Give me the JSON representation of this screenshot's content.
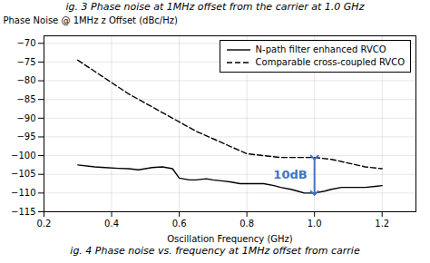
{
  "chart_data": {
    "type": "line",
    "title": "ig. 3 Phase noise at 1MHz offset from the carrier at 1.0 GHz",
    "caption": "ig. 4 Phase noise vs. frequency at 1MHz offset from carrie",
    "xlabel": "Oscillation Frequency (GHz)",
    "ylabel": "Phase Noise @ 1MHz z Offset (dBc/Hz)",
    "xlim": [
      0.2,
      1.3
    ],
    "ylim": [
      -115,
      -68
    ],
    "xticks": [
      0.2,
      0.4,
      0.6,
      0.8,
      {
        "value": 1.0,
        "label": "1.0"
      },
      1.2
    ],
    "yticks": [
      -115,
      -110,
      -105,
      -100,
      -95,
      -90,
      -85,
      -80,
      -75,
      -70
    ],
    "grid": true,
    "legend": "upper right",
    "series": [
      {
        "name": "N-path filter enhanced RVCO",
        "color": "#000000",
        "line_style": "solid",
        "x": [
          0.3,
          0.35,
          0.38,
          0.42,
          0.45,
          0.48,
          0.5,
          0.52,
          0.55,
          0.58,
          0.6,
          0.63,
          0.65,
          0.68,
          0.7,
          0.73,
          0.75,
          0.78,
          0.8,
          0.83,
          0.85,
          0.88,
          0.9,
          0.93,
          0.95,
          0.97,
          1.0,
          1.03,
          1.05,
          1.08,
          1.1,
          1.13,
          1.15,
          1.18,
          1.2
        ],
        "values": [
          -102.5,
          -103.0,
          -103.2,
          -103.4,
          -103.5,
          -103.8,
          -103.5,
          -103.2,
          -103.0,
          -103.5,
          -106.0,
          -106.5,
          -106.5,
          -106.2,
          -106.5,
          -106.8,
          -107.0,
          -107.5,
          -107.5,
          -107.5,
          -107.5,
          -108.0,
          -108.5,
          -109.0,
          -109.5,
          -110.0,
          -110.0,
          -109.5,
          -109.0,
          -108.5,
          -108.5,
          -108.5,
          -108.5,
          -108.2,
          -108.0
        ]
      },
      {
        "name": "Comparable cross-coupled RVCO",
        "color": "#000000",
        "line_style": "dashed",
        "x": [
          0.3,
          0.35,
          0.4,
          0.45,
          0.5,
          0.55,
          0.6,
          0.65,
          0.7,
          0.75,
          0.8,
          0.85,
          0.9,
          0.95,
          1.0,
          1.05,
          1.1,
          1.15,
          1.2
        ],
        "values": [
          -74.5,
          -77.5,
          -80.5,
          -83.5,
          -86.0,
          -88.5,
          -91.0,
          -93.5,
          -95.5,
          -97.5,
          -99.5,
          -100.0,
          -100.5,
          -100.5,
          -100.5,
          -101.0,
          -102.0,
          -103.0,
          -103.5
        ]
      }
    ],
    "annotations": [
      {
        "text": "10dB",
        "x": 1.0,
        "y_top": -100.5,
        "y_bottom": -110.0,
        "color": "#4472C4"
      }
    ]
  }
}
